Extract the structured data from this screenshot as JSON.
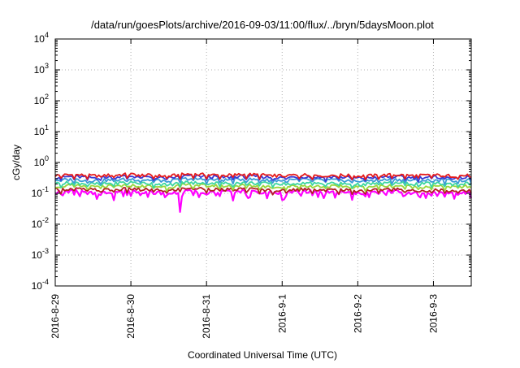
{
  "chart_data": {
    "type": "line",
    "title": "/data/run/goesPlots/archive/2016-09-03/11:00/flux/../bryn/5daysMoon.plot",
    "xlabel": "Coordinated Universal Time (UTC)",
    "ylabel": "cGy/day",
    "yscale": "log",
    "ylim": [
      0.0001,
      10000
    ],
    "xlim": [
      0,
      5.5
    ],
    "grid": true,
    "x_ticks": [
      {
        "value": 0,
        "label": "2016-8-29"
      },
      {
        "value": 1,
        "label": "2016-8-30"
      },
      {
        "value": 2,
        "label": "2016-8-31"
      },
      {
        "value": 3,
        "label": "2016-9-1"
      },
      {
        "value": 4,
        "label": "2016-9-2"
      },
      {
        "value": 5,
        "label": "2016-9-3"
      }
    ],
    "y_ticks": [
      {
        "value": 0.0001,
        "base": "10",
        "exp": "-4"
      },
      {
        "value": 0.001,
        "base": "10",
        "exp": "-3"
      },
      {
        "value": 0.01,
        "base": "10",
        "exp": "-2"
      },
      {
        "value": 0.1,
        "base": "10",
        "exp": "-1"
      },
      {
        "value": 1,
        "base": "10",
        "exp": "0"
      },
      {
        "value": 10,
        "base": "10",
        "exp": "1"
      },
      {
        "value": 100,
        "base": "10",
        "exp": "2"
      },
      {
        "value": 1000,
        "base": "10",
        "exp": "3"
      },
      {
        "value": 10000,
        "base": "10",
        "exp": "4"
      }
    ],
    "x": [
      0,
      0.25,
      0.5,
      0.75,
      1,
      1.25,
      1.5,
      1.75,
      2,
      2.25,
      2.5,
      2.75,
      3,
      3.25,
      3.5,
      3.75,
      4,
      4.25,
      4.5,
      4.75,
      5,
      5.25,
      5.5
    ],
    "series": [
      {
        "color": "#e41a1c",
        "values": [
          0.38,
          0.4,
          0.37,
          0.39,
          0.41,
          0.38,
          0.36,
          0.42,
          0.4,
          0.38,
          0.41,
          0.39,
          0.37,
          0.4,
          0.38,
          0.39,
          0.36,
          0.38,
          0.4,
          0.37,
          0.39,
          0.37,
          0.38
        ]
      },
      {
        "color": "#3b3bd6",
        "values": [
          0.33,
          0.35,
          0.32,
          0.34,
          0.36,
          0.33,
          0.31,
          0.37,
          0.35,
          0.33,
          0.36,
          0.34,
          0.32,
          0.35,
          0.33,
          0.34,
          0.31,
          0.33,
          0.35,
          0.32,
          0.34,
          0.32,
          0.33
        ]
      },
      {
        "color": "#3b9ad6",
        "values": [
          0.27,
          0.28,
          0.26,
          0.27,
          0.29,
          0.27,
          0.25,
          0.3,
          0.28,
          0.27,
          0.29,
          0.27,
          0.26,
          0.28,
          0.27,
          0.27,
          0.25,
          0.27,
          0.28,
          0.26,
          0.27,
          0.26,
          0.27
        ]
      },
      {
        "color": "#3bd6a0",
        "values": [
          0.21,
          0.22,
          0.2,
          0.21,
          0.23,
          0.21,
          0.19,
          0.23,
          0.22,
          0.21,
          0.22,
          0.21,
          0.2,
          0.22,
          0.21,
          0.21,
          0.19,
          0.21,
          0.22,
          0.2,
          0.21,
          0.2,
          0.21
        ]
      },
      {
        "color": "#9ad63b",
        "values": [
          0.17,
          0.18,
          0.16,
          0.17,
          0.18,
          0.17,
          0.16,
          0.19,
          0.18,
          0.17,
          0.18,
          0.17,
          0.16,
          0.18,
          0.17,
          0.17,
          0.16,
          0.17,
          0.18,
          0.16,
          0.17,
          0.16,
          0.17
        ]
      },
      {
        "color": "#b22222",
        "values": [
          0.13,
          0.14,
          0.13,
          0.13,
          0.14,
          0.13,
          0.12,
          0.15,
          0.14,
          0.13,
          0.14,
          0.13,
          0.12,
          0.14,
          0.13,
          0.13,
          0.12,
          0.13,
          0.14,
          0.12,
          0.13,
          0.12,
          0.13
        ]
      },
      {
        "color": "#ff00ff",
        "values": [
          0.11,
          0.12,
          0.1,
          0.11,
          0.12,
          0.11,
          0.1,
          0.12,
          0.11,
          0.11,
          0.12,
          0.11,
          0.1,
          0.12,
          0.11,
          0.11,
          0.1,
          0.11,
          0.12,
          0.1,
          0.11,
          0.1,
          0.11
        ]
      }
    ],
    "dips": [
      {
        "x": 1.65,
        "value": 0.025
      },
      {
        "x": 0.9,
        "value": 0.08
      },
      {
        "x": 2.55,
        "value": 0.07
      },
      {
        "x": 3.0,
        "value": 0.06
      },
      {
        "x": 3.55,
        "value": 0.07
      },
      {
        "x": 4.9,
        "value": 0.07
      }
    ]
  }
}
